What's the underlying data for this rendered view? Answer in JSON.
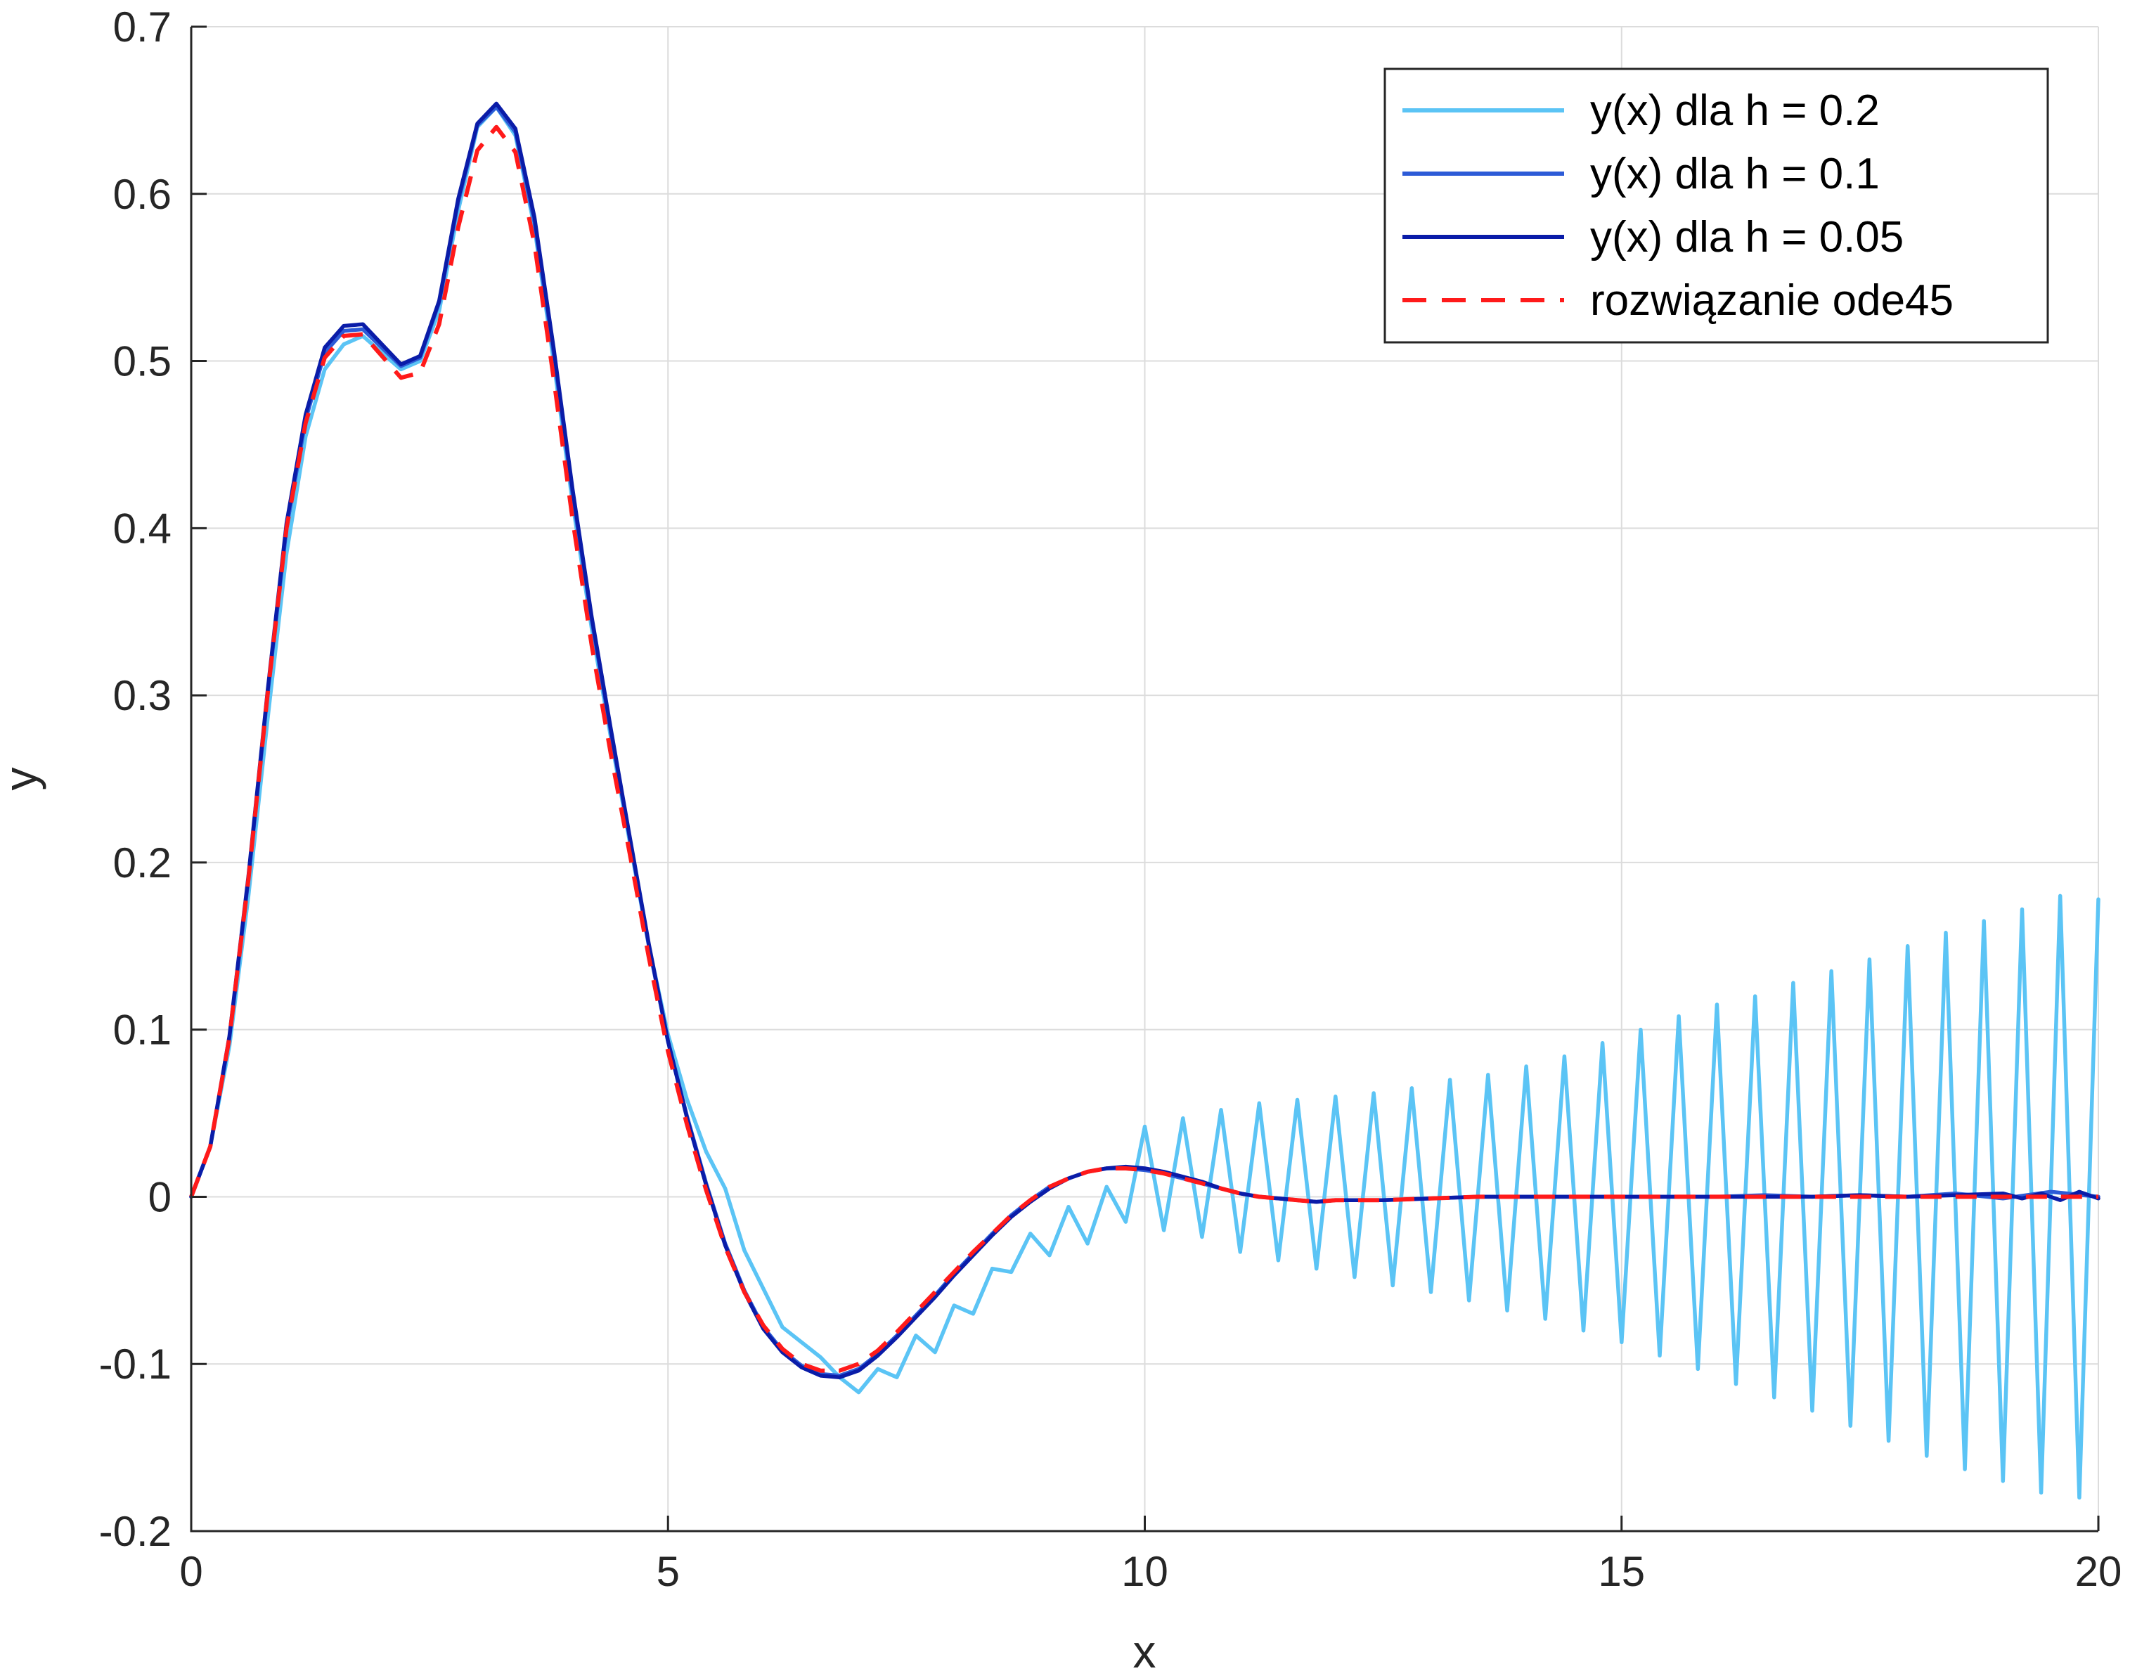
{
  "chart_data": {
    "type": "line",
    "title": "",
    "xlabel": "x",
    "ylabel": "y",
    "xlim": [
      0,
      20
    ],
    "ylim": [
      -0.2,
      0.7
    ],
    "grid": true,
    "legend_position": "top-right",
    "x_ticks": [
      0,
      5,
      10,
      15,
      20
    ],
    "x_tick_labels": [
      "0",
      "5",
      "10",
      "15",
      "20"
    ],
    "y_ticks": [
      -0.2,
      -0.1,
      0,
      0.1,
      0.2,
      0.3,
      0.4,
      0.5,
      0.6,
      0.7
    ],
    "y_tick_labels": [
      "-0.2",
      "-0.1",
      "0",
      "0.1",
      "0.2",
      "0.3",
      "0.4",
      "0.5",
      "0.6",
      "0.7"
    ],
    "series": [
      {
        "name": "y(x) dla h = 0.2",
        "color": "#5BC4F5",
        "style": "solid",
        "x": [
          0,
          0.2,
          0.4,
          0.6,
          0.8,
          1.0,
          1.2,
          1.4,
          1.6,
          1.8,
          2.0,
          2.2,
          2.4,
          2.6,
          2.8,
          3.0,
          3.2,
          3.4,
          3.6,
          3.8,
          4.0,
          4.2,
          4.4,
          4.6,
          4.8,
          5.0,
          5.2,
          5.4,
          5.6,
          5.8,
          6.0,
          6.2,
          6.4,
          6.6,
          6.8,
          7.0,
          7.2,
          7.4,
          7.6,
          7.8,
          8.0,
          8.2,
          8.4,
          8.6,
          8.8,
          9.0,
          9.2,
          9.4,
          9.6,
          9.8,
          10.0,
          10.2,
          10.4,
          10.6,
          10.8,
          11.0,
          11.2,
          11.4,
          11.6,
          11.8,
          12.0,
          12.2,
          12.4,
          12.6,
          12.8,
          13.0,
          13.2,
          13.4,
          13.6,
          13.8,
          14.0,
          14.2,
          14.4,
          14.6,
          14.8,
          15.0,
          15.2,
          15.4,
          15.6,
          15.8,
          16.0,
          16.2,
          16.4,
          16.6,
          16.8,
          17.0,
          17.2,
          17.4,
          17.6,
          17.8,
          18.0,
          18.2,
          18.4,
          18.6,
          18.8,
          19.0,
          19.2,
          19.4,
          19.6,
          19.8,
          20.0
        ],
        "values": [
          0,
          0.03,
          0.09,
          0.18,
          0.285,
          0.385,
          0.455,
          0.495,
          0.51,
          0.515,
          0.505,
          0.495,
          0.5,
          0.53,
          0.59,
          0.64,
          0.652,
          0.635,
          0.58,
          0.5,
          0.415,
          0.34,
          0.275,
          0.212,
          0.15,
          0.097,
          0.058,
          0.027,
          0.005,
          -0.032,
          -0.055,
          -0.078,
          -0.087,
          -0.096,
          -0.108,
          -0.117,
          -0.103,
          -0.108,
          -0.083,
          -0.093,
          -0.065,
          -0.07,
          -0.043,
          -0.045,
          -0.022,
          -0.035,
          -0.006,
          -0.028,
          0.006,
          -0.015,
          0.042,
          -0.02,
          0.047,
          -0.024,
          0.052,
          -0.033,
          0.056,
          -0.038,
          0.058,
          -0.043,
          0.06,
          -0.048,
          0.062,
          -0.053,
          0.065,
          -0.057,
          0.07,
          -0.062,
          0.073,
          -0.068,
          0.078,
          -0.073,
          0.084,
          -0.08,
          0.092,
          -0.087,
          0.1,
          -0.095,
          0.108,
          -0.103,
          0.115,
          -0.112,
          0.12,
          -0.12,
          0.128,
          -0.128,
          0.135,
          -0.137,
          0.142,
          -0.146,
          0.15,
          -0.155,
          0.158,
          -0.163,
          0.165,
          -0.17,
          0.172,
          -0.177,
          0.18,
          -0.18,
          0.178
        ]
      },
      {
        "name": "y(x) dla h = 0.1",
        "color": "#2D5BD7",
        "style": "solid",
        "x": [
          0,
          0.2,
          0.4,
          0.6,
          0.8,
          1.0,
          1.2,
          1.4,
          1.6,
          1.8,
          2.0,
          2.2,
          2.4,
          2.6,
          2.8,
          3.0,
          3.2,
          3.4,
          3.6,
          3.8,
          4.0,
          4.2,
          4.4,
          4.6,
          4.8,
          5.0,
          5.2,
          5.4,
          5.6,
          5.8,
          6.0,
          6.2,
          6.4,
          6.6,
          6.8,
          7.0,
          7.2,
          7.4,
          7.6,
          7.8,
          8.0,
          8.2,
          8.4,
          8.6,
          8.8,
          9.0,
          9.2,
          9.4,
          9.6,
          9.8,
          10.0,
          10.2,
          10.4,
          10.6,
          10.8,
          11.0,
          11.2,
          11.4,
          11.6,
          11.8,
          12.0,
          12.5,
          13.0,
          13.5,
          14.0,
          14.5,
          15.0,
          15.5,
          16.0,
          16.5,
          17.0,
          17.5,
          18.0,
          18.5,
          19.0,
          19.5,
          20.0
        ],
        "values": [
          0,
          0.03,
          0.095,
          0.19,
          0.3,
          0.4,
          0.465,
          0.505,
          0.518,
          0.519,
          0.508,
          0.497,
          0.502,
          0.535,
          0.595,
          0.641,
          0.652,
          0.637,
          0.583,
          0.505,
          0.42,
          0.345,
          0.278,
          0.214,
          0.15,
          0.093,
          0.048,
          0.008,
          -0.028,
          -0.056,
          -0.078,
          -0.092,
          -0.101,
          -0.106,
          -0.107,
          -0.103,
          -0.094,
          -0.083,
          -0.071,
          -0.059,
          -0.046,
          -0.034,
          -0.022,
          -0.011,
          -0.002,
          0.006,
          0.011,
          0.015,
          0.017,
          0.017,
          0.016,
          0.014,
          0.011,
          0.008,
          0.005,
          0.002,
          0.0,
          -0.001,
          -0.002,
          -0.003,
          -0.002,
          -0.002,
          -0.001,
          0.0,
          0.0,
          0.0,
          0.0,
          0.0,
          0.0,
          0.001,
          0.0,
          0.001,
          0.0,
          0.002,
          -0.001,
          0.003,
          0.0
        ]
      },
      {
        "name": "y(x) dla h = 0.05",
        "color": "#0A1CA8",
        "style": "solid",
        "x": [
          0,
          0.2,
          0.4,
          0.6,
          0.8,
          1.0,
          1.2,
          1.4,
          1.6,
          1.8,
          2.0,
          2.2,
          2.4,
          2.6,
          2.8,
          3.0,
          3.2,
          3.4,
          3.6,
          3.8,
          4.0,
          4.2,
          4.4,
          4.6,
          4.8,
          5.0,
          5.2,
          5.4,
          5.6,
          5.8,
          6.0,
          6.2,
          6.4,
          6.6,
          6.8,
          7.0,
          7.2,
          7.4,
          7.6,
          7.8,
          8.0,
          8.2,
          8.4,
          8.6,
          8.8,
          9.0,
          9.2,
          9.4,
          9.6,
          9.8,
          10.0,
          10.2,
          10.4,
          10.6,
          10.8,
          11.0,
          11.2,
          11.4,
          11.6,
          11.8,
          12.0,
          12.5,
          13.0,
          13.5,
          14.0,
          14.5,
          15.0,
          15.5,
          16.0,
          16.5,
          17.0,
          17.5,
          18.0,
          18.5,
          19.0,
          19.2,
          19.4,
          19.6,
          19.8,
          20.0
        ],
        "values": [
          0,
          0.03,
          0.096,
          0.192,
          0.302,
          0.403,
          0.468,
          0.508,
          0.521,
          0.522,
          0.51,
          0.498,
          0.503,
          0.536,
          0.597,
          0.642,
          0.654,
          0.639,
          0.586,
          0.508,
          0.423,
          0.347,
          0.28,
          0.215,
          0.151,
          0.093,
          0.047,
          0.007,
          -0.029,
          -0.057,
          -0.079,
          -0.093,
          -0.102,
          -0.107,
          -0.108,
          -0.104,
          -0.095,
          -0.084,
          -0.072,
          -0.06,
          -0.047,
          -0.035,
          -0.023,
          -0.012,
          -0.003,
          0.005,
          0.011,
          0.015,
          0.017,
          0.018,
          0.017,
          0.015,
          0.012,
          0.009,
          0.005,
          0.002,
          0.0,
          -0.001,
          -0.002,
          -0.003,
          -0.002,
          -0.002,
          -0.001,
          0.0,
          0.0,
          0.0,
          0.0,
          0.0,
          0.0,
          0.0,
          0.0,
          0.001,
          0.0,
          0.001,
          0.002,
          -0.001,
          0.002,
          -0.002,
          0.003,
          -0.001
        ]
      },
      {
        "name": "rozwiązanie ode45",
        "color": "#FF1A1A",
        "style": "dashed",
        "x": [
          0,
          0.2,
          0.4,
          0.6,
          0.8,
          1.0,
          1.2,
          1.4,
          1.6,
          1.8,
          2.0,
          2.2,
          2.4,
          2.6,
          2.8,
          3.0,
          3.2,
          3.4,
          3.6,
          3.8,
          4.0,
          4.2,
          4.4,
          4.6,
          4.8,
          5.0,
          5.2,
          5.4,
          5.6,
          5.8,
          6.0,
          6.2,
          6.4,
          6.6,
          6.8,
          7.0,
          7.2,
          7.4,
          7.6,
          7.8,
          8.0,
          8.2,
          8.4,
          8.6,
          8.8,
          9.0,
          9.2,
          9.4,
          9.6,
          9.8,
          10.0,
          10.2,
          10.4,
          10.6,
          10.8,
          11.0,
          11.2,
          11.4,
          11.6,
          11.8,
          12.0,
          12.5,
          13.0,
          13.5,
          14.0,
          14.5,
          15.0,
          15.5,
          16.0,
          16.5,
          17.0,
          17.5,
          18.0,
          18.5,
          19.0,
          19.5,
          20.0
        ],
        "values": [
          0,
          0.03,
          0.095,
          0.19,
          0.3,
          0.4,
          0.463,
          0.502,
          0.515,
          0.516,
          0.503,
          0.49,
          0.493,
          0.522,
          0.58,
          0.626,
          0.64,
          0.625,
          0.57,
          0.49,
          0.405,
          0.33,
          0.265,
          0.205,
          0.143,
          0.087,
          0.043,
          0.004,
          -0.03,
          -0.057,
          -0.077,
          -0.091,
          -0.1,
          -0.104,
          -0.104,
          -0.1,
          -0.092,
          -0.081,
          -0.069,
          -0.057,
          -0.045,
          -0.033,
          -0.022,
          -0.011,
          -0.002,
          0.006,
          0.011,
          0.015,
          0.017,
          0.017,
          0.016,
          0.014,
          0.011,
          0.008,
          0.005,
          0.002,
          0.0,
          -0.001,
          -0.002,
          -0.003,
          -0.002,
          -0.002,
          -0.001,
          0.0,
          0.0,
          0.0,
          0.0,
          0.0,
          0.0,
          0.0,
          0.0,
          0.0,
          0.0,
          0.0,
          0.0,
          0.0,
          0.0
        ]
      }
    ]
  }
}
